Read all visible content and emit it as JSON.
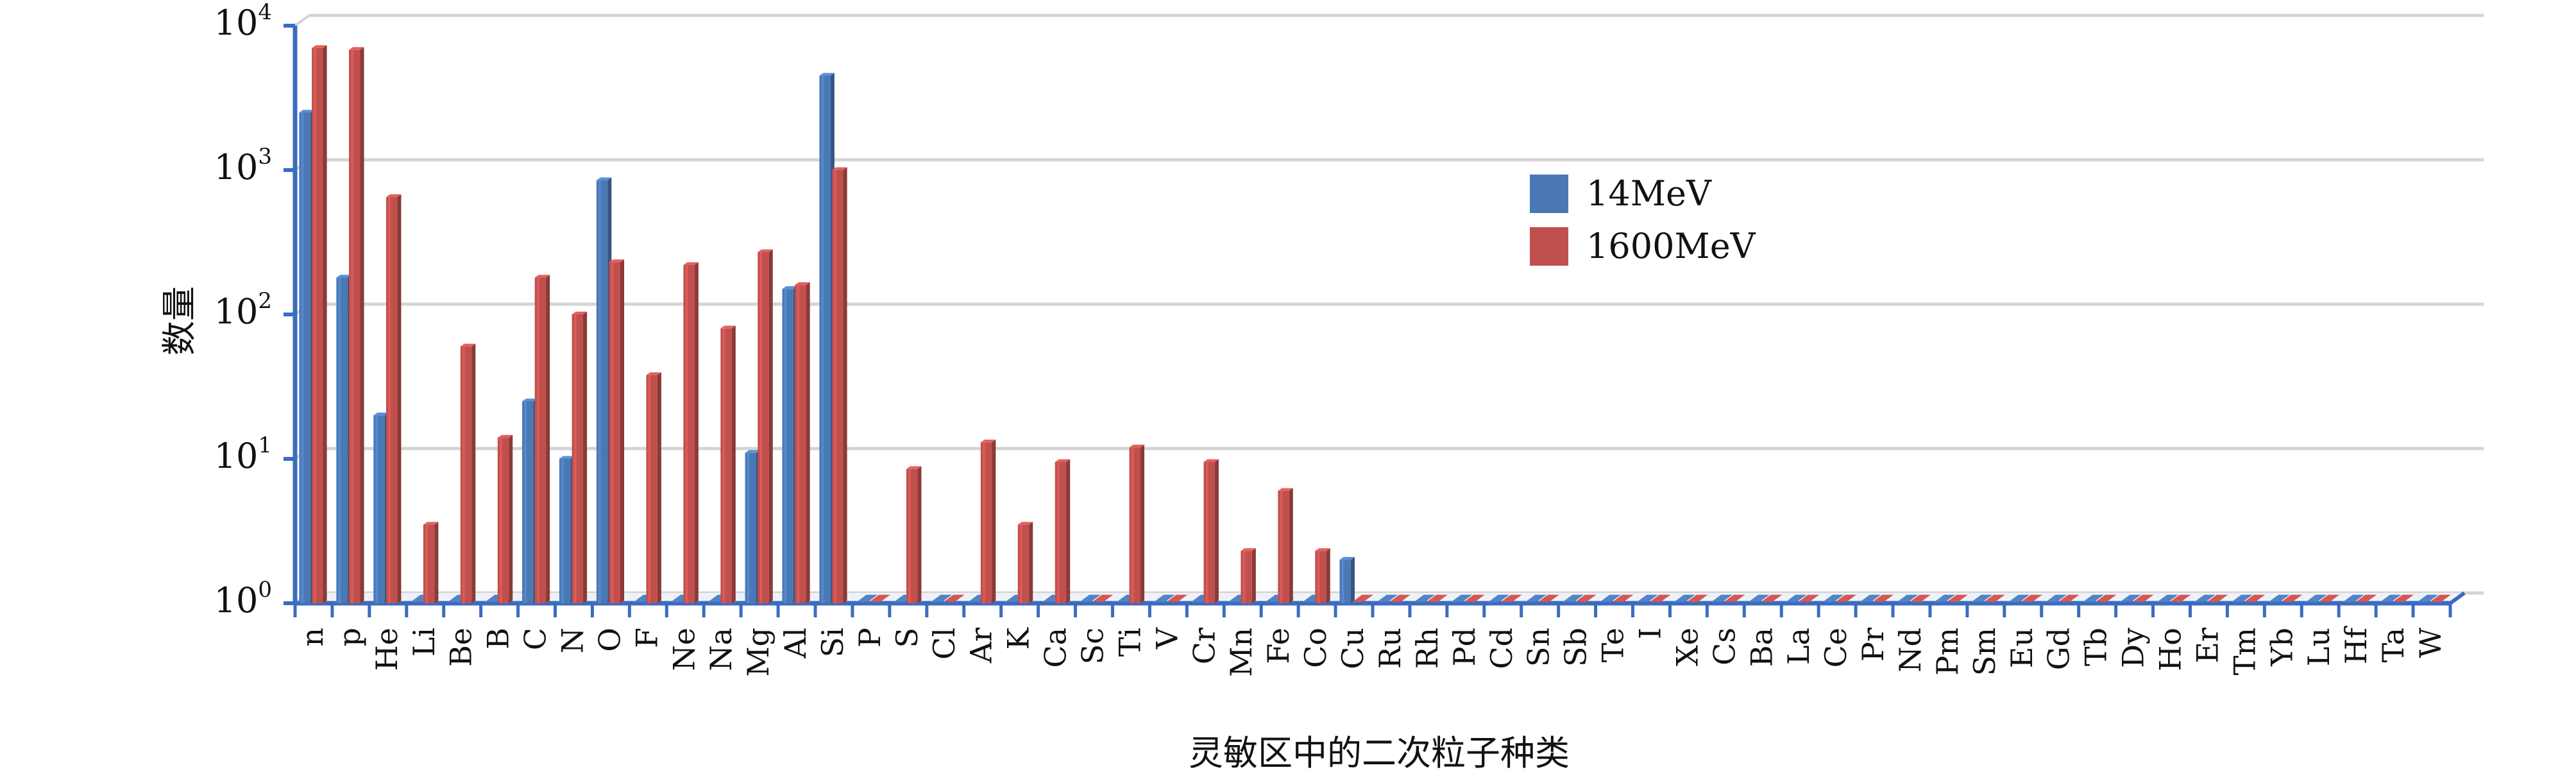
{
  "chart_data": {
    "type": "bar",
    "title": "",
    "xlabel": "灵敏区中的二次粒子种类",
    "ylabel": "数量",
    "yscale": "log",
    "ylim": [
      1,
      10000
    ],
    "yticks": [
      {
        "base": "10",
        "exp": "0"
      },
      {
        "base": "10",
        "exp": "1"
      },
      {
        "base": "10",
        "exp": "2"
      },
      {
        "base": "10",
        "exp": "3"
      },
      {
        "base": "10",
        "exp": "4"
      }
    ],
    "grid": true,
    "legend_position": "top-center",
    "categories": [
      "n",
      "p",
      "He",
      "Li",
      "Be",
      "B",
      "C",
      "N",
      "O",
      "F",
      "Ne",
      "Na",
      "Mg",
      "Al",
      "Si",
      "P",
      "S",
      "Cl",
      "Ar",
      "K",
      "Ca",
      "Sc",
      "Ti",
      "V",
      "Cr",
      "Mn",
      "Fe",
      "Co",
      "Cu",
      "Ru",
      "Rh",
      "Pd",
      "Cd",
      "Sn",
      "Sb",
      "Te",
      "I",
      "Xe",
      "Cs",
      "Ba",
      "La",
      "Ce",
      "Pr",
      "Nd",
      "Pm",
      "Sm",
      "Eu",
      "Gd",
      "Tb",
      "Dy",
      "Ho",
      "Er",
      "Tm",
      "Yb",
      "Lu",
      "Hf",
      "Ta",
      "W"
    ],
    "series": [
      {
        "name": "14MeV",
        "color": "#4a78b5",
        "values": [
          2500,
          180,
          20,
          1,
          1,
          1,
          25,
          10,
          850,
          1,
          1,
          1,
          11,
          150,
          4500,
          1,
          1,
          1,
          1,
          1,
          1,
          1,
          1,
          1,
          1,
          1,
          1,
          1,
          2,
          1,
          1,
          1,
          1,
          1,
          1,
          1,
          1,
          1,
          1,
          1,
          1,
          1,
          1,
          1,
          1,
          1,
          1,
          1,
          1,
          1,
          1,
          1,
          1,
          1,
          1,
          1,
          1,
          1
        ]
      },
      {
        "name": "1600MeV",
        "color": "#c0504d",
        "values": [
          7000,
          6800,
          650,
          3.5,
          60,
          14,
          180,
          100,
          230,
          38,
          220,
          80,
          270,
          160,
          1000,
          1,
          8.5,
          1,
          13,
          3.5,
          9.5,
          1,
          12,
          1,
          9.5,
          2.3,
          6,
          2.3,
          1,
          1,
          1,
          1,
          1,
          1,
          1,
          1,
          1,
          1,
          1,
          1,
          1,
          1,
          1,
          1,
          1,
          1,
          1,
          1,
          1,
          1,
          1,
          1,
          1,
          1,
          1,
          1,
          1,
          1
        ]
      }
    ]
  }
}
